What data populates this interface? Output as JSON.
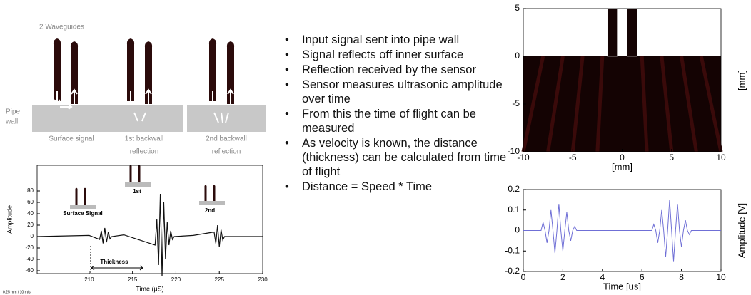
{
  "diagram": {
    "title": "2 Waveguides",
    "pipe_label": [
      "Pipe",
      "wall"
    ],
    "captions": [
      [
        "Surface  signal"
      ],
      [
        "1st backwall",
        "reflection"
      ],
      [
        "2nd backwall",
        "reflection"
      ]
    ]
  },
  "bullets": [
    "Input signal sent into pipe wall",
    "Signal reflects off inner surface",
    "Reflection received by the sensor",
    "Sensor measures ultrasonic amplitude over time",
    "From this the time of flight can be measured",
    "As velocity is known, the distance (thickness) can be calculated from time of flight",
    "Distance = Speed * Time"
  ],
  "chart_data": [
    {
      "type": "line",
      "xlabel": "Time (μS)",
      "ylabel": "Amplitude",
      "color": "#111111",
      "xlim": [
        204,
        230
      ],
      "xticks": [
        210,
        215,
        220,
        225,
        230
      ],
      "ylim": [
        -65,
        125
      ],
      "yticks": [
        80,
        60,
        40,
        20,
        0,
        -20,
        -40,
        -60
      ],
      "x": [
        204,
        210,
        211.2,
        211.4,
        211.6,
        211.8,
        212,
        212.2,
        212.4,
        212.6,
        214,
        217.6,
        217.8,
        218,
        218.2,
        218.4,
        218.6,
        218.8,
        219,
        219.2,
        219.4,
        219.6,
        219.8,
        222,
        224.4,
        224.6,
        224.8,
        225,
        225.2,
        225.4,
        225.6,
        230
      ],
      "values": [
        0,
        2,
        -5,
        10,
        -12,
        15,
        -10,
        8,
        -4,
        0,
        3,
        -15,
        30,
        -50,
        75,
        -70,
        60,
        -40,
        25,
        -15,
        10,
        -5,
        0,
        2,
        8,
        -12,
        20,
        -18,
        12,
        -6,
        0,
        0
      ],
      "annotations": [
        "Surface Signal",
        "1st",
        "2nd",
        "Thickness"
      ],
      "note": "0.25 mm / 10 m/s"
    },
    {
      "type": "heatmap",
      "xlabel": "[mm]",
      "ylabel": "[mm]",
      "xlim": [
        -10,
        10
      ],
      "xticks": [
        -10,
        -5,
        0,
        5,
        10
      ],
      "ylim": [
        -10,
        5
      ],
      "yticks": [
        5,
        0,
        -5,
        -10
      ]
    },
    {
      "type": "line",
      "xlabel": "Time [us]",
      "ylabel": "Amplitude [V]",
      "color": "#6f6fd6",
      "xlim": [
        0,
        10
      ],
      "xticks": [
        0,
        2,
        4,
        6,
        8,
        10
      ],
      "ylim": [
        -0.2,
        0.2
      ],
      "yticks": [
        -0.2,
        -0.1,
        0,
        0.1,
        0.2
      ],
      "x": [
        0,
        0.8,
        0.9,
        1.0,
        1.1,
        1.2,
        1.3,
        1.4,
        1.5,
        1.6,
        1.7,
        1.8,
        1.9,
        2.0,
        2.1,
        2.2,
        2.3,
        2.4,
        2.5,
        2.6,
        2.7,
        6.4,
        6.5,
        6.6,
        6.7,
        6.8,
        6.9,
        7.0,
        7.1,
        7.2,
        7.3,
        7.4,
        7.5,
        7.6,
        7.7,
        7.8,
        7.9,
        8.0,
        8.1,
        8.2,
        8.3,
        8.4,
        8.5,
        10
      ],
      "values": [
        0,
        0,
        0,
        0.04,
        0,
        -0.06,
        0,
        0.1,
        0,
        -0.11,
        0,
        0.13,
        0,
        -0.1,
        0,
        0.09,
        0,
        -0.05,
        0,
        0.02,
        0,
        0,
        0,
        0.03,
        0,
        -0.06,
        0,
        0.1,
        0,
        -0.13,
        0,
        0.15,
        0,
        -0.15,
        0,
        0.13,
        0,
        -0.08,
        0,
        0.05,
        0,
        -0.02,
        0,
        0
      ]
    }
  ]
}
